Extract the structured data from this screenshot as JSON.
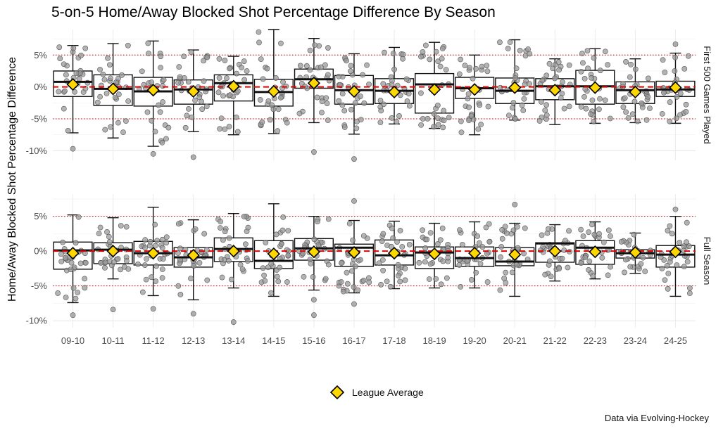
{
  "chart_data": {
    "type": "boxplot",
    "title": "5-on-5 Home/Away Blocked Shot Percentage Difference By Season",
    "ylabel": "Home/Away Blocked Shot Percentage Difference",
    "xlabel": "",
    "caption": "Data via Evolving-Hockey",
    "legend": {
      "label": "League Average",
      "placement": "bottom",
      "marker_color": "#FFD700"
    },
    "reference_lines": {
      "zero_line": {
        "value": 0,
        "color": "#e00000",
        "style": "dashed"
      },
      "threshold_lines": {
        "values": [
          -5,
          5
        ],
        "color": "#c00000",
        "style": "dotted"
      }
    },
    "categories": [
      "09-10",
      "10-11",
      "11-12",
      "12-13",
      "13-14",
      "14-15",
      "15-16",
      "16-17",
      "17-18",
      "18-19",
      "19-20",
      "20-21",
      "21-22",
      "22-23",
      "23-24",
      "24-25"
    ],
    "panels": [
      {
        "name": "First 500 Games Played",
        "ylim": [
          -11.5,
          9
        ],
        "yticks": [
          -10,
          -5,
          0,
          5
        ],
        "ytick_labels": [
          "-10%",
          "-5%",
          "0%",
          "5%"
        ],
        "boxes": [
          {
            "q1": -1.5,
            "median": 0.8,
            "q3": 2.5,
            "whisker_low": -7.2,
            "whisker_high": 6.5,
            "mean": 0.4,
            "outliers": [
              -9.7
            ]
          },
          {
            "q1": -2.9,
            "median": -0.3,
            "q3": 1.9,
            "whisker_low": -8.0,
            "whisker_high": 6.8,
            "mean": -0.3,
            "outliers": []
          },
          {
            "q1": -3.0,
            "median": -0.7,
            "q3": 1.5,
            "whisker_low": -9.3,
            "whisker_high": 7.2,
            "mean": -0.5,
            "outliers": [
              -10.5
            ]
          },
          {
            "q1": -2.7,
            "median": -0.4,
            "q3": 1.1,
            "whisker_low": -7.0,
            "whisker_high": 5.8,
            "mean": -0.7,
            "outliers": [
              -11.0
            ]
          },
          {
            "q1": -2.2,
            "median": 0.6,
            "q3": 1.9,
            "whisker_low": -7.5,
            "whisker_high": 4.8,
            "mean": 0.1,
            "outliers": []
          },
          {
            "q1": -3.0,
            "median": -0.8,
            "q3": 1.2,
            "whisker_low": -7.3,
            "whisker_high": 9.0,
            "mean": -0.7,
            "outliers": []
          },
          {
            "q1": -0.2,
            "median": 1.2,
            "q3": 2.8,
            "whisker_low": -5.6,
            "whisker_high": 7.6,
            "mean": 0.6,
            "outliers": [
              -10.2
            ]
          },
          {
            "q1": -2.7,
            "median": -0.5,
            "q3": 1.8,
            "whisker_low": -7.4,
            "whisker_high": 5.2,
            "mean": -0.7,
            "outliers": [
              -11.3
            ]
          },
          {
            "q1": -2.6,
            "median": -0.6,
            "q3": 1.3,
            "whisker_low": -5.8,
            "whisker_high": 6.2,
            "mean": -0.8,
            "outliers": []
          },
          {
            "q1": -4.1,
            "median": 0.4,
            "q3": 2.1,
            "whisker_low": -6.5,
            "whisker_high": 7.0,
            "mean": -0.4,
            "outliers": []
          },
          {
            "q1": -1.8,
            "median": -0.2,
            "q3": 1.5,
            "whisker_low": -7.5,
            "whisker_high": 5.0,
            "mean": -0.4,
            "outliers": []
          },
          {
            "q1": -2.6,
            "median": -0.6,
            "q3": 1.4,
            "whisker_low": -5.2,
            "whisker_high": 7.4,
            "mean": -0.1,
            "outliers": []
          },
          {
            "q1": -2.0,
            "median": 0.1,
            "q3": 1.3,
            "whisker_low": -5.9,
            "whisker_high": 4.4,
            "mean": -0.5,
            "outliers": []
          },
          {
            "q1": -2.7,
            "median": 0.1,
            "q3": 2.6,
            "whisker_low": -5.7,
            "whisker_high": 6.0,
            "mean": -0.1,
            "outliers": []
          },
          {
            "q1": -2.6,
            "median": -0.5,
            "q3": 0.8,
            "whisker_low": -5.6,
            "whisker_high": 4.4,
            "mean": -0.8,
            "outliers": []
          },
          {
            "q1": -1.5,
            "median": -0.4,
            "q3": 0.9,
            "whisker_low": -5.7,
            "whisker_high": 5.3,
            "mean": -0.1,
            "outliers": [
              6.7
            ]
          }
        ]
      },
      {
        "name": "Full Season",
        "ylim": [
          -11,
          8.2
        ],
        "yticks": [
          -10,
          -5,
          0,
          5
        ],
        "ytick_labels": [
          "-10%",
          "-5%",
          "0%",
          "5%"
        ],
        "boxes": [
          {
            "q1": -2.6,
            "median": 0.1,
            "q3": 1.3,
            "whisker_low": -7.4,
            "whisker_high": 5.2,
            "mean": -0.3,
            "outliers": [
              -9.2
            ]
          },
          {
            "q1": -1.8,
            "median": 0.2,
            "q3": 1.2,
            "whisker_low": -4.0,
            "whisker_high": 4.8,
            "mean": 0.0,
            "outliers": [
              -8.4
            ]
          },
          {
            "q1": -2.0,
            "median": -0.3,
            "q3": 1.4,
            "whisker_low": -6.4,
            "whisker_high": 6.3,
            "mean": -0.3,
            "outliers": [
              -8.3
            ]
          },
          {
            "q1": -2.3,
            "median": -0.9,
            "q3": 0.5,
            "whisker_low": -7.0,
            "whisker_high": 4.5,
            "mean": -0.6,
            "outliers": [
              -9.0
            ]
          },
          {
            "q1": -1.5,
            "median": 0.3,
            "q3": 1.9,
            "whisker_low": -5.3,
            "whisker_high": 5.4,
            "mean": 0.0,
            "outliers": [
              -10.2
            ]
          },
          {
            "q1": -2.5,
            "median": -1.4,
            "q3": 1.5,
            "whisker_low": -6.5,
            "whisker_high": 6.8,
            "mean": -0.4,
            "outliers": []
          },
          {
            "q1": -1.3,
            "median": 0.4,
            "q3": 1.8,
            "whisker_low": -5.6,
            "whisker_high": 5.0,
            "mean": -0.1,
            "outliers": [
              -7.0,
              -9.2
            ]
          },
          {
            "q1": -2.2,
            "median": 0.5,
            "q3": 1.0,
            "whisker_low": -6.0,
            "whisker_high": 4.4,
            "mean": -0.2,
            "outliers": [
              -7.6,
              7.2
            ]
          },
          {
            "q1": -2.0,
            "median": -0.6,
            "q3": 1.6,
            "whisker_low": -5.4,
            "whisker_high": 4.3,
            "mean": -0.3,
            "outliers": []
          },
          {
            "q1": -2.5,
            "median": -0.2,
            "q3": 0.6,
            "whisker_low": -5.3,
            "whisker_high": 4.0,
            "mean": -0.4,
            "outliers": []
          },
          {
            "q1": -2.2,
            "median": -1.0,
            "q3": 0.6,
            "whisker_low": -5.3,
            "whisker_high": 4.2,
            "mean": -0.3,
            "outliers": []
          },
          {
            "q1": -2.1,
            "median": -1.5,
            "q3": 0.5,
            "whisker_low": -6.5,
            "whisker_high": 4.0,
            "mean": -0.5,
            "outliers": [
              6.7
            ]
          },
          {
            "q1": -1.6,
            "median": 1.1,
            "q3": 1.2,
            "whisker_low": -4.3,
            "whisker_high": 3.8,
            "mean": 0.0,
            "outliers": []
          },
          {
            "q1": -1.9,
            "median": 0.5,
            "q3": 1.5,
            "whisker_low": -4.0,
            "whisker_high": 4.2,
            "mean": -0.1,
            "outliers": []
          },
          {
            "q1": -1.0,
            "median": -0.3,
            "q3": 0.2,
            "whisker_low": -3.2,
            "whisker_high": 2.6,
            "mean": -0.2,
            "outliers": []
          },
          {
            "q1": -2.3,
            "median": -0.5,
            "q3": 0.8,
            "whisker_low": -6.5,
            "whisker_high": 5.0,
            "mean": -0.1,
            "outliers": [
              6.0
            ]
          }
        ]
      }
    ]
  }
}
